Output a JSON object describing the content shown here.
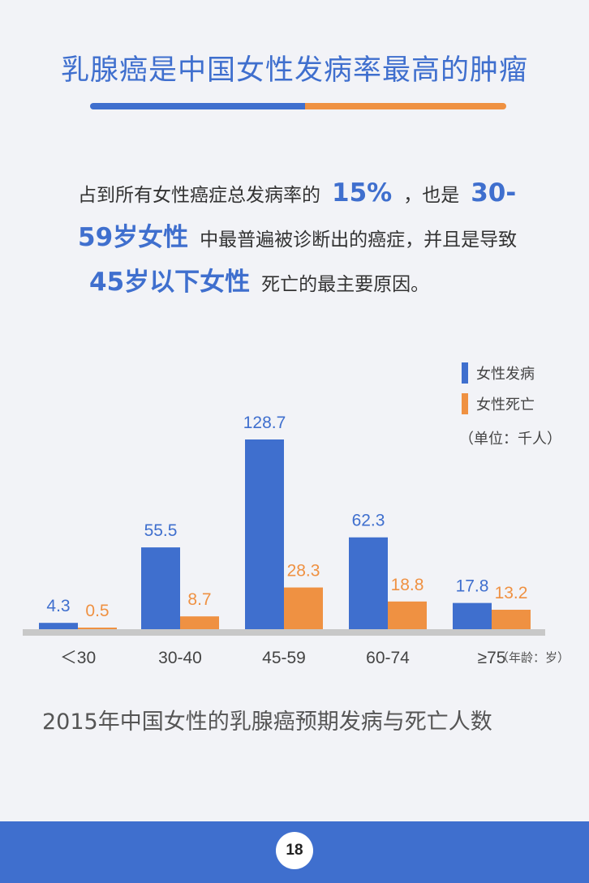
{
  "title": "乳腺癌是中国女性发病率最高的肿瘤",
  "paragraph": {
    "p1": "占到所有女性癌症总发病率的",
    "h1": "15%",
    "p2": "，也是",
    "h2": "30-59岁女性",
    "p3": "中最普遍被诊断出的癌症，并且是导致",
    "h3": "45岁以下女性",
    "p4": "死亡的最主要原因。"
  },
  "legend": {
    "incidence": "女性发病",
    "death": "女性死亡",
    "unit": "（单位：千人）"
  },
  "colors": {
    "incidence": "#3f6fce",
    "death": "#ef9142",
    "axis": "#c8c8c8"
  },
  "chart_data": {
    "type": "bar",
    "categories": [
      "＜30",
      "30-40",
      "45-59",
      "60-74",
      "≥75"
    ],
    "series": [
      {
        "name": "女性发病",
        "values": [
          4.3,
          55.5,
          128.7,
          62.3,
          17.8
        ]
      },
      {
        "name": "女性死亡",
        "values": [
          0.5,
          8.7,
          28.3,
          18.8,
          13.2
        ]
      }
    ],
    "xlabel": "（年龄：岁）",
    "ylim": [
      0,
      128.7
    ],
    "grid": false,
    "legend_position": "top-right"
  },
  "caption": "2015年中国女性的乳腺癌预期发病与死亡人数",
  "page_number": "18"
}
